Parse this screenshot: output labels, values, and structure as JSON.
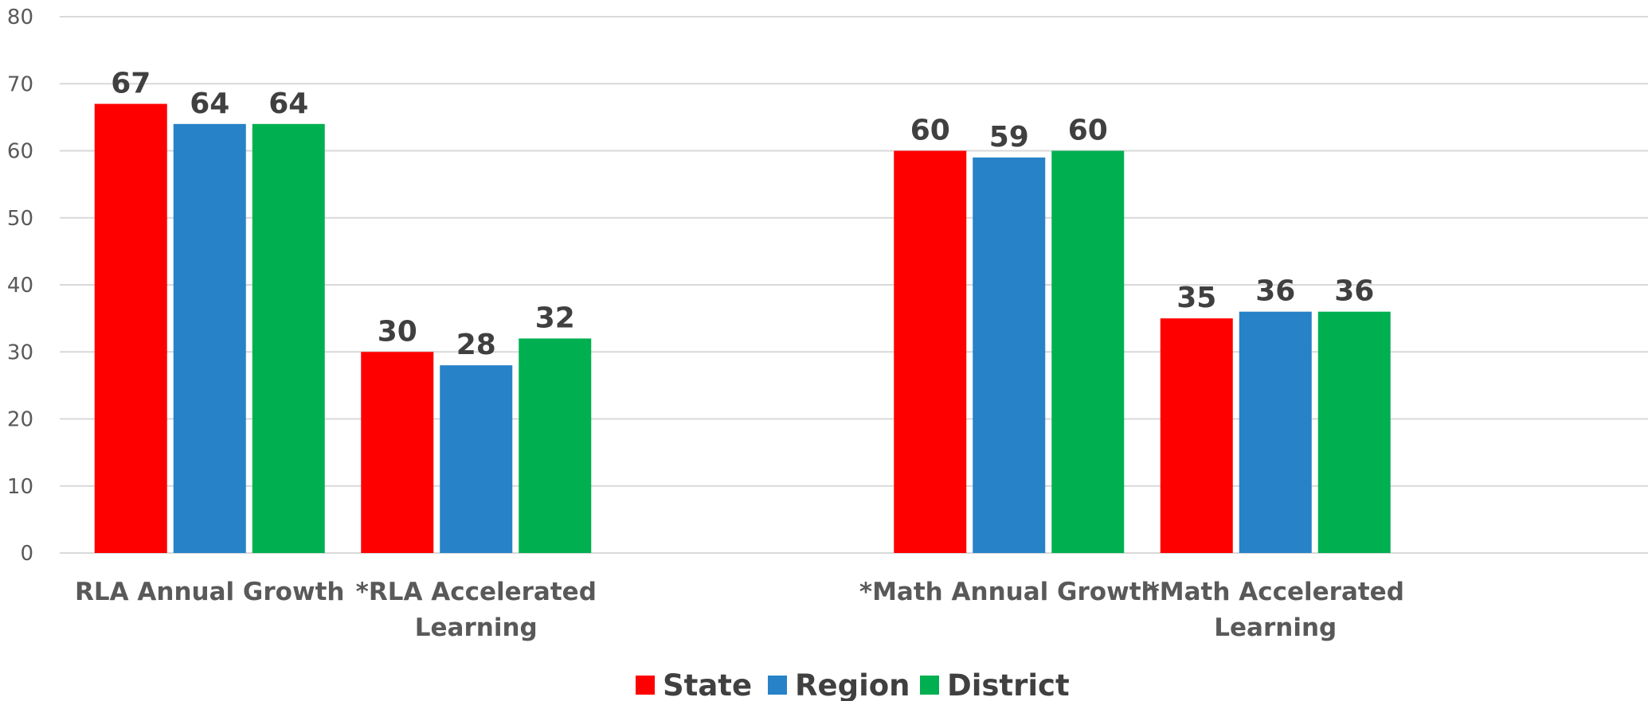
{
  "chart_data": {
    "type": "bar",
    "categories": [
      "RLA Annual Growth",
      "*RLA Accelerated Learning",
      "",
      "*Math Annual Growth",
      "*Math Accelerated Learning",
      ""
    ],
    "series": [
      {
        "name": "State",
        "color": "#ff0000",
        "values": [
          67,
          30,
          null,
          60,
          35,
          null
        ]
      },
      {
        "name": "Region",
        "color": "#2782c8",
        "values": [
          64,
          28,
          null,
          59,
          36,
          null
        ]
      },
      {
        "name": "District",
        "color": "#00b050",
        "values": [
          64,
          32,
          null,
          60,
          36,
          null
        ]
      }
    ],
    "y_ticks": [
      "0",
      "10",
      "20",
      "30",
      "40",
      "50",
      "60",
      "70",
      "80"
    ],
    "ylim": [
      0,
      80
    ],
    "grid": true,
    "legend_position": "bottom-center",
    "data_labels": true
  }
}
